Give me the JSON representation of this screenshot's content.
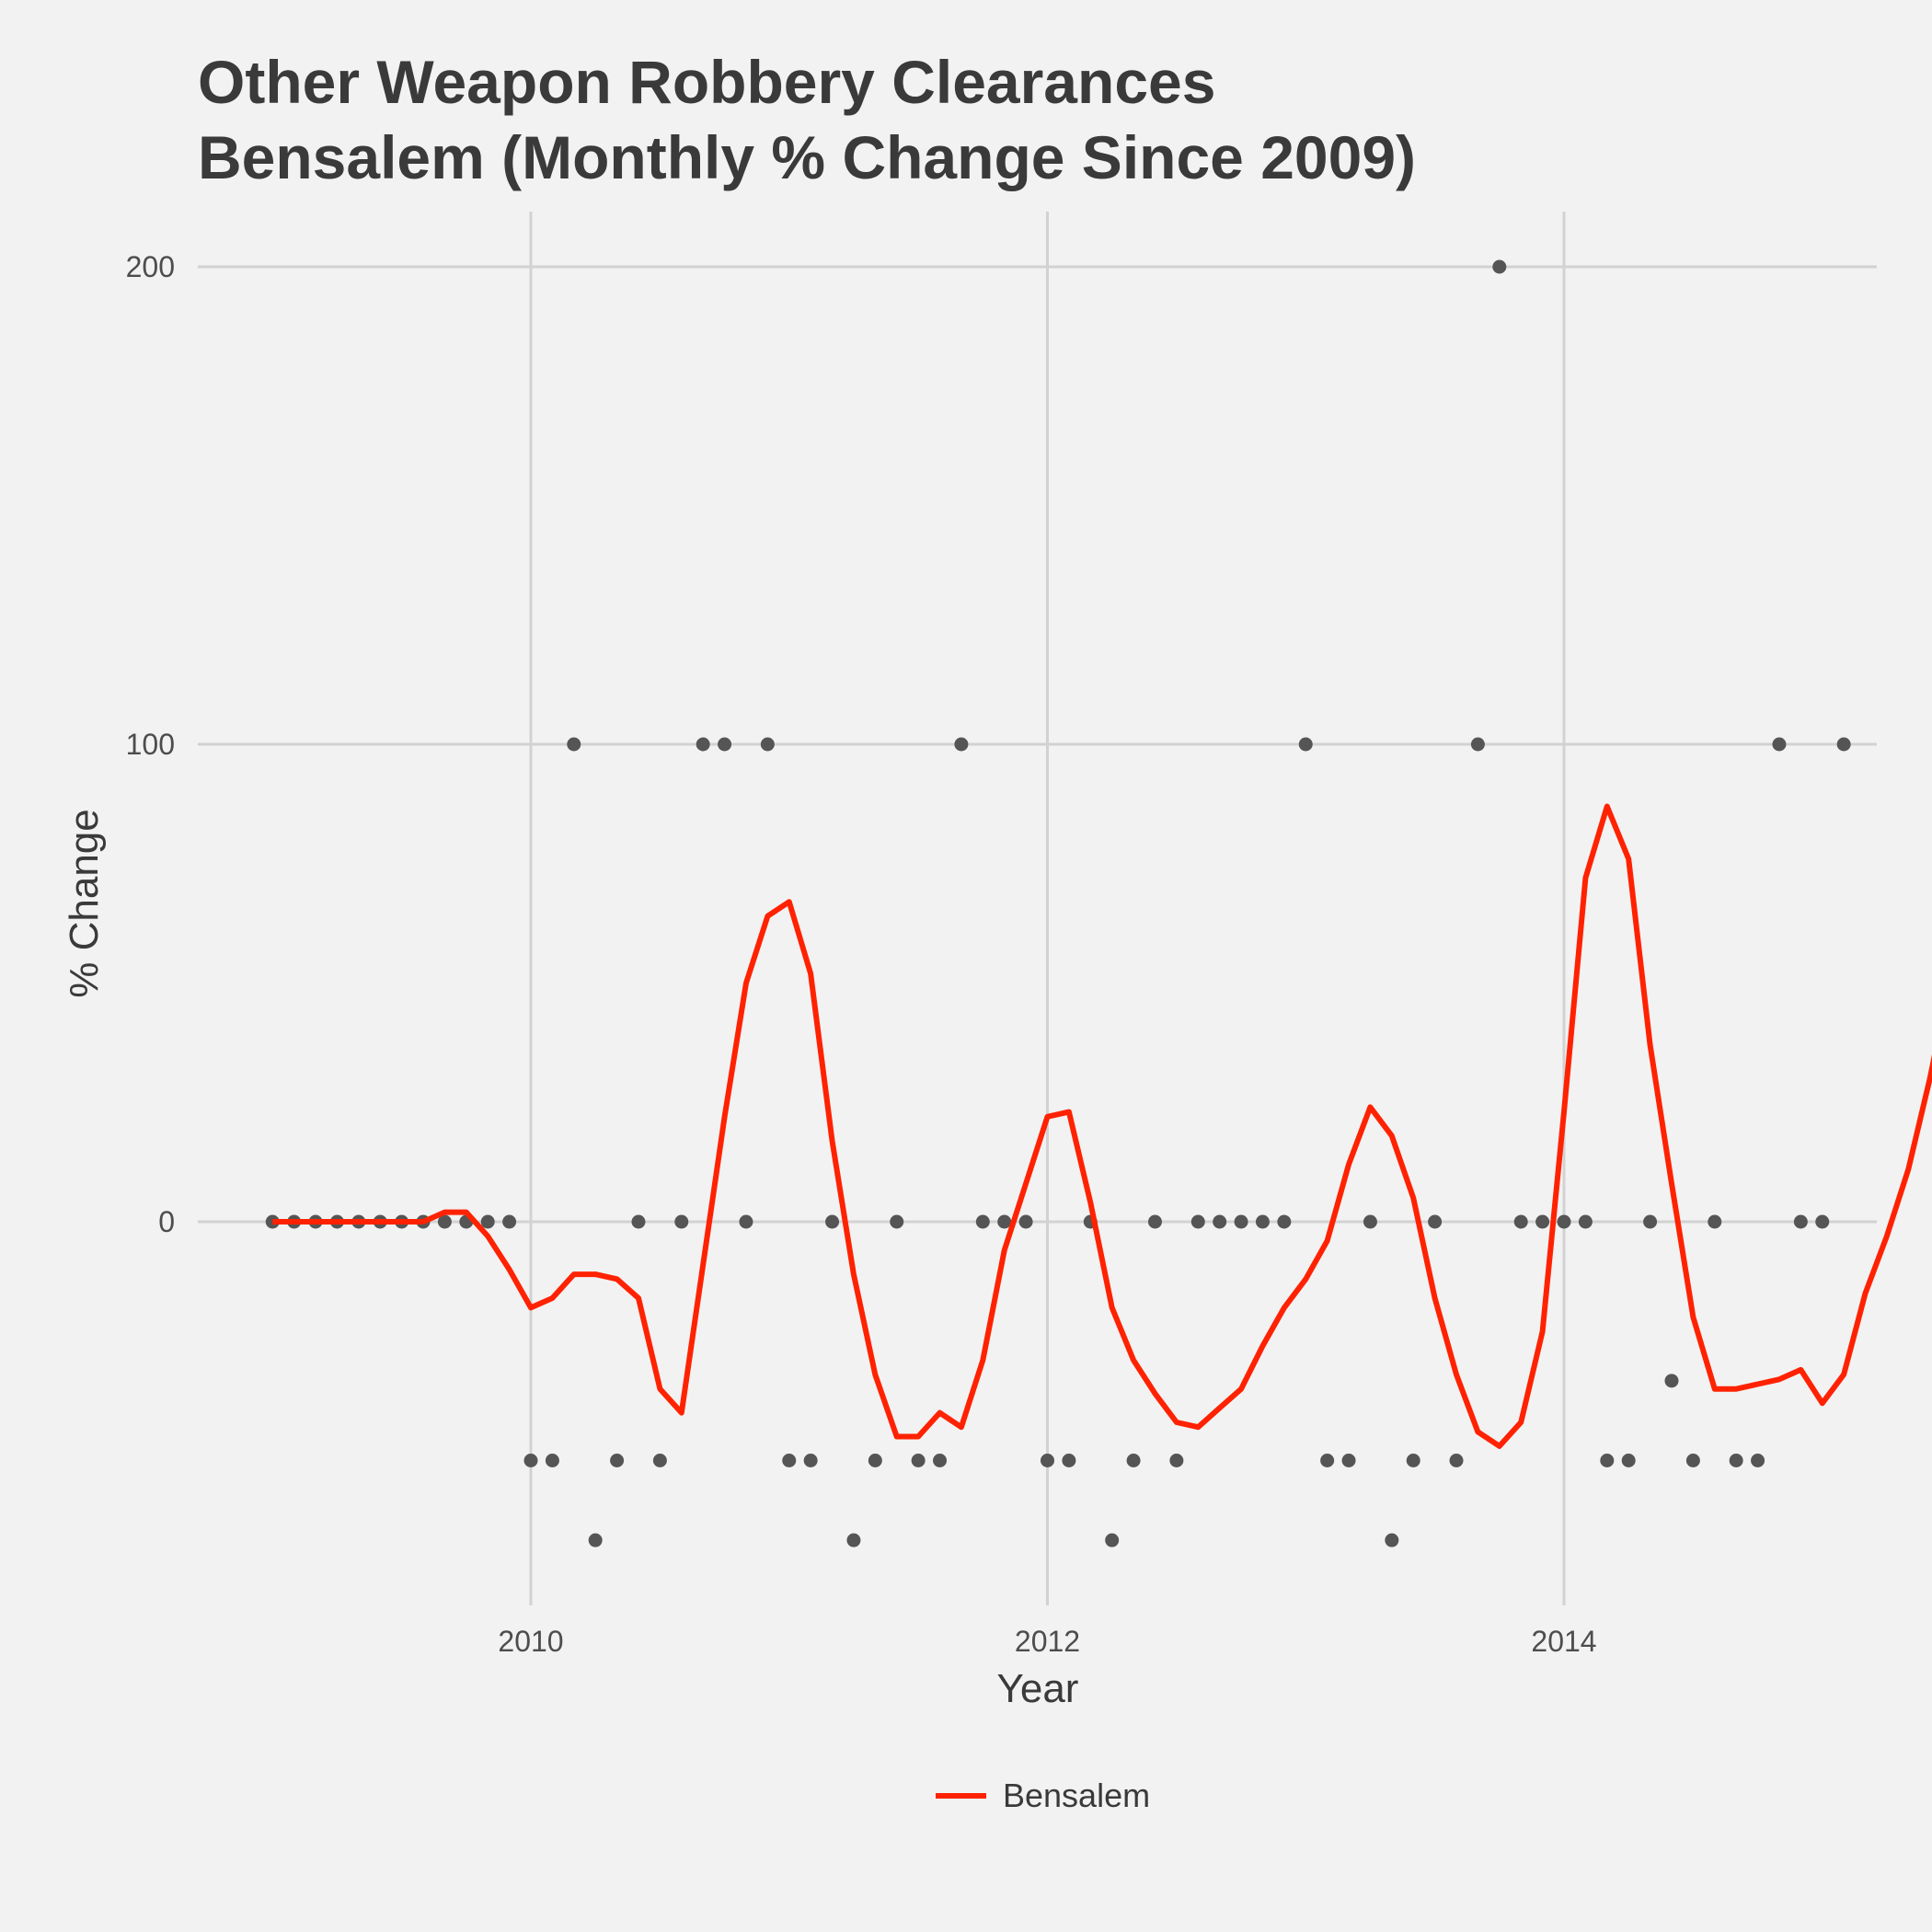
{
  "colors": {
    "background": "#f2f2f2",
    "grid": "#d2d2d2",
    "points": "#555555",
    "line": "#ff2200"
  },
  "chart_data": {
    "type": "line",
    "title_lines": [
      "Other Weapon Robbery Clearances",
      "Bensalem (Monthly % Change Since 2009)"
    ],
    "xlabel": "Year",
    "ylabel": "% Change",
    "xlim": [
      2009.0,
      2015.0
    ],
    "ylim": [
      -80,
      212
    ],
    "x_ticks": [
      2010,
      2012,
      2014
    ],
    "x_tick_labels": [
      "2010",
      "2012",
      "2014"
    ],
    "y_ticks": [
      0,
      100,
      200
    ],
    "y_tick_labels": [
      "0",
      "100",
      "200"
    ],
    "grid": true,
    "legend": {
      "position": "bottom",
      "entries": [
        {
          "label": "Bensalem",
          "color": "#ff2200"
        }
      ]
    },
    "points_x_start": 2009.0,
    "points_step_months": 1,
    "points": [
      0,
      0,
      0,
      0,
      0,
      0,
      0,
      0,
      0,
      0,
      0,
      0,
      -50,
      -50,
      100,
      -66.7,
      -50,
      0,
      -50,
      0,
      100,
      100,
      0,
      100,
      -50,
      -50,
      0,
      -66.7,
      -50,
      0,
      -50,
      -50,
      100,
      0,
      0,
      0,
      -50,
      -50,
      0,
      -66.7,
      -50,
      0,
      -50,
      0,
      0,
      0,
      0,
      0,
      100,
      -50,
      -50,
      0,
      -66.7,
      -50,
      0,
      -50,
      100,
      200,
      0,
      0,
      0,
      0,
      -50,
      -50,
      0,
      -33.3,
      -50,
      0,
      -50,
      -50,
      100,
      0,
      0,
      100
    ],
    "series": [
      {
        "name": "Bensalem",
        "x_start": 2009.0,
        "step_months": 1,
        "values": [
          0,
          0,
          0,
          0,
          0,
          0,
          0,
          0,
          2,
          2,
          -3,
          -10,
          -18,
          -16,
          -11,
          -11,
          -12,
          -16,
          -35,
          -40,
          -9,
          22,
          50,
          64,
          67,
          52,
          17,
          -11,
          -32,
          -45,
          -45,
          -40,
          -43,
          -29,
          -6,
          8,
          22,
          23,
          4,
          -18,
          -29,
          -36,
          -42,
          -43,
          -39,
          -35,
          -26,
          -18,
          -12,
          -4,
          12,
          24,
          18,
          5,
          -16,
          -32,
          -44,
          -47,
          -42,
          -23,
          23,
          72,
          87,
          76,
          37,
          8,
          -20,
          -35,
          -35,
          -34,
          -33,
          -31,
          -38,
          -32,
          -15,
          -3,
          11,
          30,
          52,
          73
        ]
      }
    ]
  }
}
